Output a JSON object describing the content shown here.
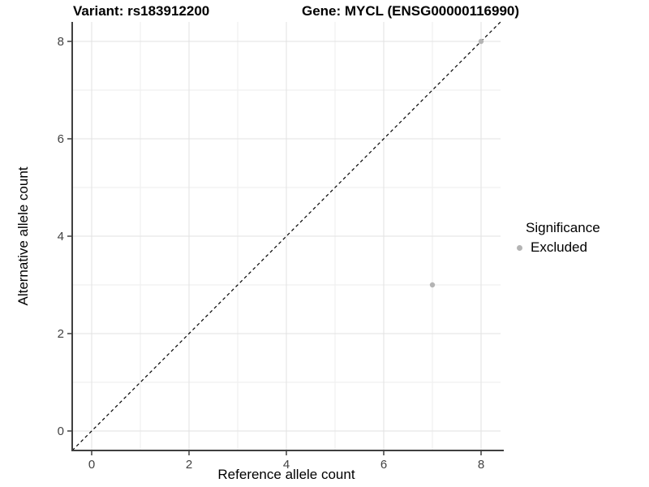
{
  "chart_data": {
    "type": "scatter",
    "title_left": "Variant: rs183912200",
    "title_right": "Gene: MYCL (ENSG00000116990)",
    "xlabel": "Reference allele count",
    "ylabel": "Alternative allele count",
    "xlim": [
      -0.4,
      8.4
    ],
    "ylim": [
      -0.4,
      8.4
    ],
    "x_ticks": [
      0,
      2,
      4,
      6,
      8
    ],
    "y_ticks": [
      0,
      2,
      4,
      6,
      8
    ],
    "x_minor_ticks": [
      1,
      3,
      5,
      7
    ],
    "y_minor_ticks": [
      1,
      3,
      5,
      7
    ],
    "grid": "major+minor",
    "identity_line": {
      "style": "dashed",
      "slope": 1,
      "intercept": 0,
      "color": "#000000"
    },
    "series": [
      {
        "name": "Excluded",
        "color": "#b4b4b4",
        "points": [
          {
            "x": 7,
            "y": 3
          },
          {
            "x": 8,
            "y": 8
          }
        ]
      }
    ],
    "legend": {
      "position": "right",
      "title": "Significance",
      "entries": [
        {
          "label": "Excluded",
          "color": "#b4b4b4"
        }
      ]
    },
    "colors": {
      "background": "#ffffff",
      "grid_major": "#e2e2e2",
      "grid_minor": "#ededed",
      "axis_line": "#3f3f3f",
      "tick_label": "#424242",
      "point": "#b4b4b4"
    }
  }
}
